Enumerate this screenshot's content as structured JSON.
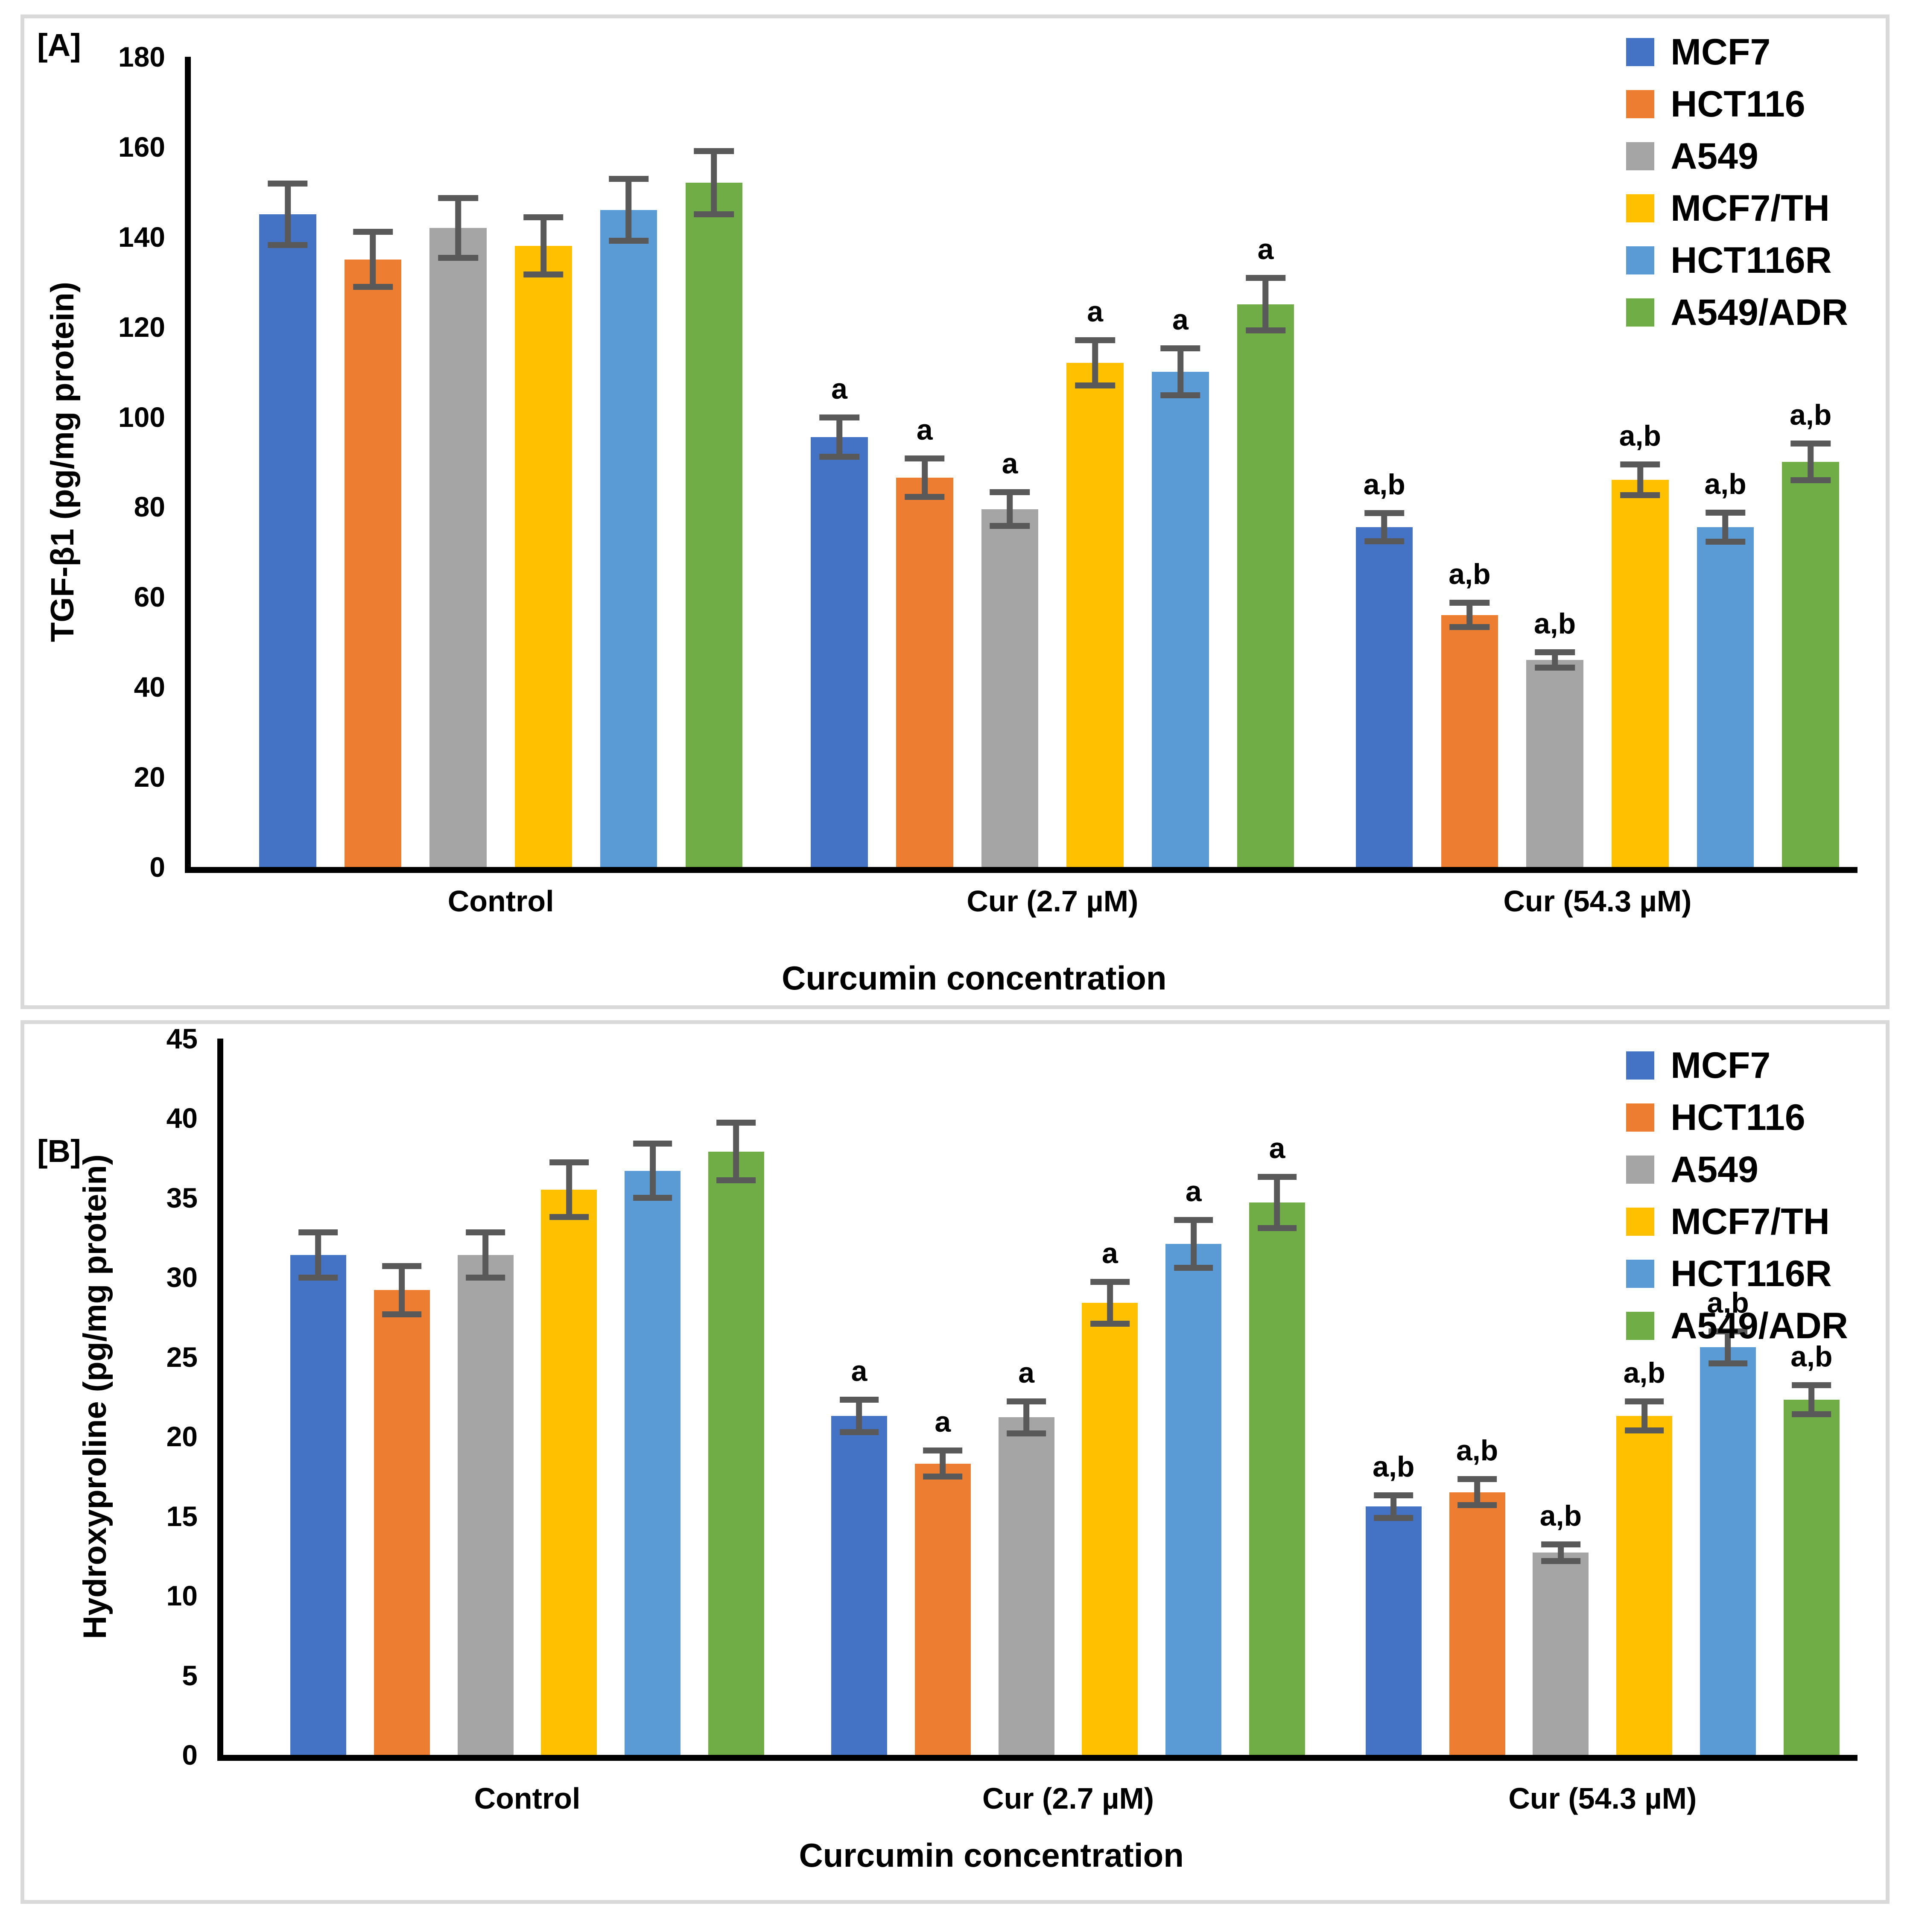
{
  "figure": {
    "background": "#FFFFFF",
    "panel_border_color": "#D9D9D9",
    "axis_color": "#000000",
    "error_bar_color": "#595959"
  },
  "chart_data": [
    {
      "type": "bar",
      "panel_tag": "[A]",
      "title": "",
      "xlabel": "Curcumin concentration",
      "ylabel": "TGF-β1  (pg/mg protein)",
      "ylim": [
        0,
        180
      ],
      "ytick_step": 20,
      "grid": false,
      "legend_position": "top-right",
      "categories": [
        "Control",
        "Cur (2.7  µM)",
        "Cur (54.3 µM)"
      ],
      "group_annotations": [
        "",
        "a",
        "a,b"
      ],
      "series": [
        {
          "name": "MCF7",
          "color": "#4472C4",
          "values": [
            145,
            95.5,
            75.5
          ],
          "errors": [
            7.5,
            5.0,
            3.8
          ]
        },
        {
          "name": "HCT116",
          "color": "#ED7D31",
          "values": [
            135,
            86.5,
            56.0
          ],
          "errors": [
            6.8,
            4.9,
            3.4
          ]
        },
        {
          "name": "A549",
          "color": "#A5A5A5",
          "values": [
            142,
            79.5,
            46.0
          ],
          "errors": [
            7.3,
            4.4,
            2.4
          ]
        },
        {
          "name": "MCF7/TH",
          "color": "#FFC000",
          "values": [
            138,
            112.0,
            86.0
          ],
          "errors": [
            7.0,
            5.7,
            4.1
          ]
        },
        {
          "name": "HCT116R",
          "color": "#5B9BD5",
          "values": [
            146,
            110.0,
            75.5
          ],
          "errors": [
            7.5,
            5.9,
            3.9
          ]
        },
        {
          "name": "A549/ADR",
          "color": "#70AD47",
          "values": [
            152,
            125.0,
            90.0
          ],
          "errors": [
            7.7,
            6.5,
            4.7
          ]
        }
      ]
    },
    {
      "type": "bar",
      "panel_tag": "[B]",
      "title": "",
      "xlabel": "Curcumin concentration",
      "ylabel": "Hydroxyproline (pg/mg protein)",
      "ylim": [
        0,
        45
      ],
      "ytick_step": 5,
      "grid": false,
      "legend_position": "top-right",
      "categories": [
        "Control",
        "Cur (2.7  µM)",
        "Cur (54.3 µM)"
      ],
      "group_annotations": [
        "",
        "a",
        "a,b"
      ],
      "series": [
        {
          "name": "MCF7",
          "color": "#4472C4",
          "values": [
            31.4,
            21.3,
            15.6
          ],
          "errors": [
            1.6,
            1.2,
            0.9
          ]
        },
        {
          "name": "HCT116",
          "color": "#ED7D31",
          "values": [
            29.2,
            18.3,
            16.5
          ],
          "errors": [
            1.7,
            1.0,
            1.0
          ]
        },
        {
          "name": "A549",
          "color": "#A5A5A5",
          "values": [
            31.4,
            21.2,
            12.7
          ],
          "errors": [
            1.6,
            1.2,
            0.7
          ]
        },
        {
          "name": "MCF7/TH",
          "color": "#FFC000",
          "values": [
            35.5,
            28.4,
            21.3
          ],
          "errors": [
            1.9,
            1.5,
            1.1
          ]
        },
        {
          "name": "HCT116R",
          "color": "#5B9BD5",
          "values": [
            36.7,
            32.1,
            25.6
          ],
          "errors": [
            1.9,
            1.7,
            1.2
          ]
        },
        {
          "name": "A549/ADR",
          "color": "#70AD47",
          "values": [
            37.9,
            34.7,
            22.3
          ],
          "errors": [
            2.0,
            1.8,
            1.1
          ]
        }
      ]
    }
  ],
  "layout_hints": {
    "group_left_percents": [
      4.1,
      37.2,
      69.9
    ],
    "group_width_percent": 29
  }
}
